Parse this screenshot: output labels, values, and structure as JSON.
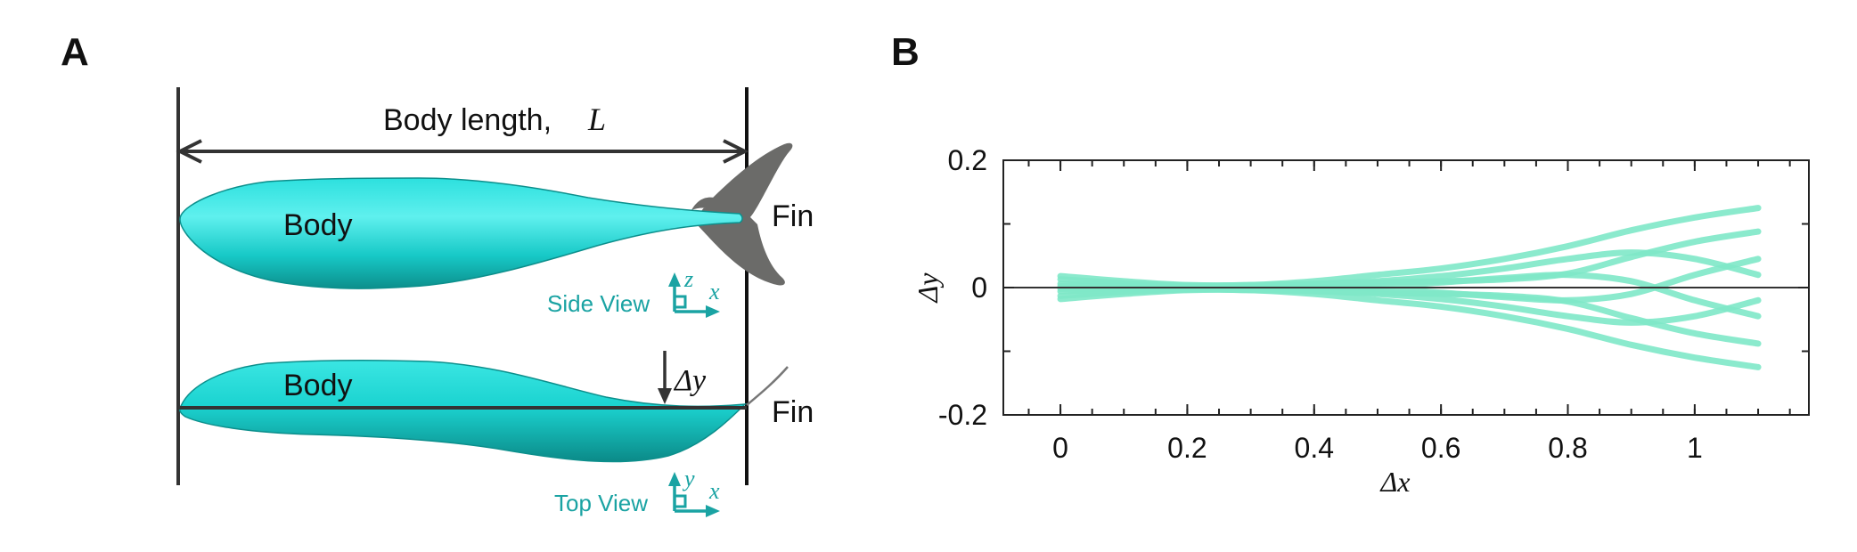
{
  "panel_a": {
    "letter": "A",
    "length_label": "Body length,",
    "length_symbol": "L",
    "side": {
      "body_label": "Body",
      "fin_label": "Fin",
      "view_label": "Side View",
      "axis_up": "z",
      "axis_right": "x"
    },
    "top": {
      "body_label": "Body",
      "fin_label": "Fin",
      "deflection_label": "Δy",
      "view_label": "Top View",
      "axis_up": "y",
      "axis_right": "x"
    },
    "colors": {
      "body": "#19d1cf",
      "body_dark": "#0f9f9c",
      "fin": "#6b6b69",
      "axis_icon": "#1aa3a3"
    }
  },
  "chart_data": {
    "type": "line",
    "panel_letter": "B",
    "title": "",
    "xlabel": "Δx",
    "ylabel": "Δy",
    "xlim": [
      -0.09,
      1.18
    ],
    "ylim": [
      -0.2,
      0.2
    ],
    "xticks": [
      0,
      0.2,
      0.4,
      0.6,
      0.8,
      1
    ],
    "xtick_labels": [
      "0",
      "0.2",
      "0.4",
      "0.6",
      "0.8",
      "1"
    ],
    "yticks": [
      -0.2,
      0,
      0.2
    ],
    "ytick_labels": [
      "-0.2",
      "0",
      "0.2"
    ],
    "zero_line": true,
    "grid": false,
    "line_color": "#7ee8c8",
    "description_of_series": "midline snapshots over one tail-beat period",
    "series": [
      {
        "x": [
          0,
          0.1,
          0.2,
          0.3,
          0.4,
          0.5,
          0.6,
          0.7,
          0.8,
          0.9,
          1.0,
          1.1
        ],
        "values": [
          0.018,
          0.01,
          0.004,
          0.004,
          0.01,
          0.02,
          0.03,
          0.045,
          0.065,
          0.09,
          0.11,
          0.125
        ]
      },
      {
        "x": [
          0,
          0.1,
          0.2,
          0.3,
          0.4,
          0.5,
          0.6,
          0.7,
          0.8,
          0.9,
          1.0,
          1.1
        ],
        "values": [
          0.013,
          0.007,
          0.003,
          0.002,
          0.004,
          0.008,
          0.01,
          0.013,
          0.022,
          0.048,
          0.072,
          0.088
        ]
      },
      {
        "x": [
          0,
          0.1,
          0.2,
          0.3,
          0.4,
          0.5,
          0.6,
          0.7,
          0.8,
          0.9,
          1.0,
          1.1
        ],
        "values": [
          0.006,
          0.004,
          0.002,
          0.0,
          0.0,
          -0.002,
          -0.008,
          -0.015,
          -0.02,
          -0.01,
          0.02,
          0.045
        ]
      },
      {
        "x": [
          0,
          0.1,
          0.2,
          0.3,
          0.4,
          0.5,
          0.6,
          0.7,
          0.8,
          0.9,
          1.0,
          1.1
        ],
        "values": [
          -0.002,
          -0.002,
          -0.002,
          -0.004,
          -0.006,
          -0.01,
          -0.018,
          -0.03,
          -0.045,
          -0.055,
          -0.045,
          -0.02
        ]
      },
      {
        "x": [
          0,
          0.1,
          0.2,
          0.3,
          0.4,
          0.5,
          0.6,
          0.7,
          0.8,
          0.9,
          1.0,
          1.1
        ],
        "values": [
          -0.018,
          -0.01,
          -0.004,
          -0.004,
          -0.01,
          -0.02,
          -0.03,
          -0.045,
          -0.065,
          -0.09,
          -0.11,
          -0.125
        ]
      },
      {
        "x": [
          0,
          0.1,
          0.2,
          0.3,
          0.4,
          0.5,
          0.6,
          0.7,
          0.8,
          0.9,
          1.0,
          1.1
        ],
        "values": [
          -0.013,
          -0.007,
          -0.003,
          -0.002,
          -0.004,
          -0.008,
          -0.01,
          -0.013,
          -0.022,
          -0.048,
          -0.072,
          -0.088
        ]
      },
      {
        "x": [
          0,
          0.1,
          0.2,
          0.3,
          0.4,
          0.5,
          0.6,
          0.7,
          0.8,
          0.9,
          1.0,
          1.1
        ],
        "values": [
          -0.006,
          -0.004,
          -0.002,
          0.0,
          0.0,
          0.002,
          0.008,
          0.015,
          0.02,
          0.01,
          -0.02,
          -0.045
        ]
      },
      {
        "x": [
          0,
          0.1,
          0.2,
          0.3,
          0.4,
          0.5,
          0.6,
          0.7,
          0.8,
          0.9,
          1.0,
          1.1
        ],
        "values": [
          0.002,
          0.002,
          0.002,
          0.004,
          0.006,
          0.01,
          0.018,
          0.03,
          0.045,
          0.055,
          0.045,
          0.02
        ]
      }
    ]
  }
}
